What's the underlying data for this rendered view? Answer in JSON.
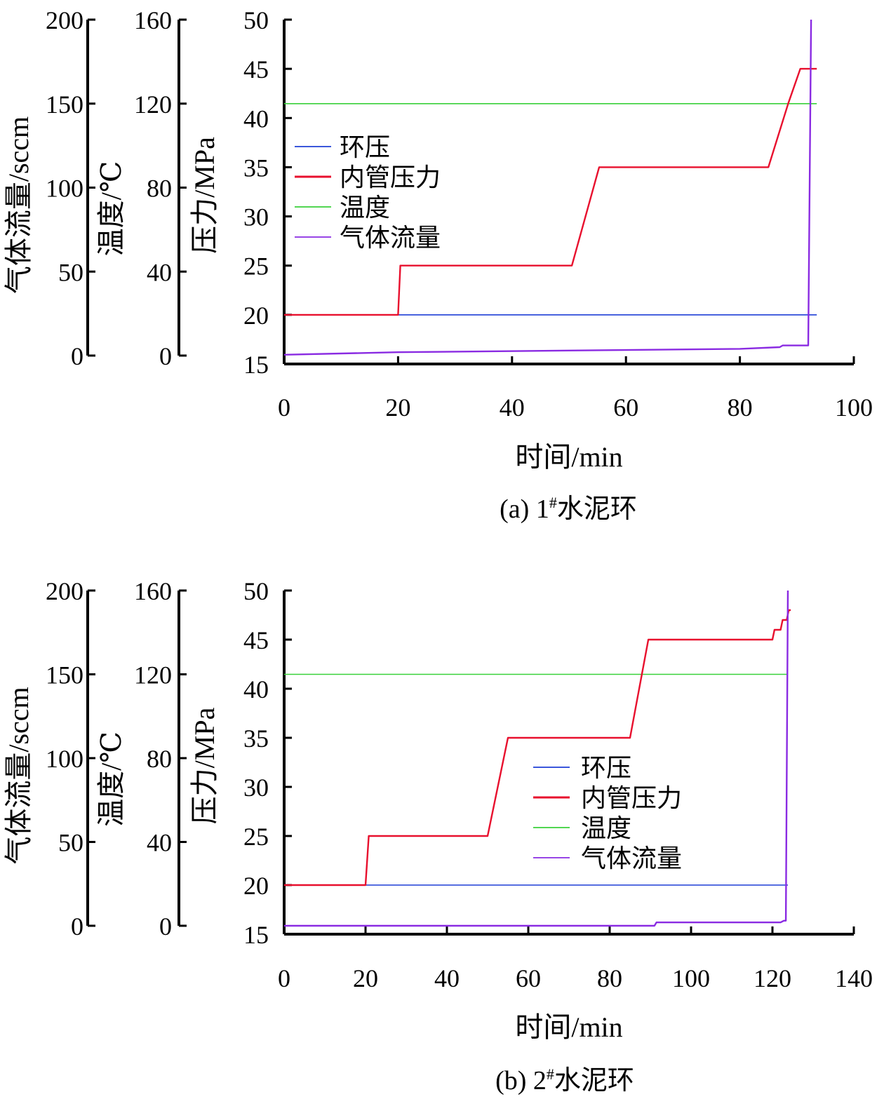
{
  "colors": {
    "annulus_pressure": "#1f3fd6",
    "inner_pressure": "#e8102e",
    "temperature": "#39d13a",
    "gas_flow": "#8a2be2",
    "axis": "#000000"
  },
  "chart_data": [
    {
      "type": "line",
      "caption": {
        "pre": "(a) 1",
        "sup": "#",
        "post": "水泥环"
      },
      "xlabel": "时间/min",
      "xlim": [
        0,
        100
      ],
      "xticks": [
        0,
        20,
        40,
        60,
        80,
        100
      ],
      "axes": {
        "pressure": {
          "label": "压力/MPa",
          "ylim": [
            15,
            50
          ],
          "ticks": [
            15,
            20,
            25,
            30,
            35,
            40,
            45,
            50
          ]
        },
        "temperature": {
          "label": "温度/℃",
          "ylim": [
            0,
            160
          ],
          "ticks": [
            0,
            40,
            80,
            120,
            160
          ]
        },
        "gas_flow": {
          "label": "气体流量/sccm",
          "ylim": [
            0,
            200
          ],
          "ticks": [
            0,
            50,
            100,
            150,
            200
          ]
        }
      },
      "legend_position": "left-top",
      "series": [
        {
          "name": "环压",
          "key": "annulus_pressure",
          "axis": "pressure",
          "x": [
            0,
            93.5
          ],
          "y": [
            20,
            20
          ]
        },
        {
          "name": "内管压力",
          "key": "inner_pressure",
          "axis": "pressure",
          "x": [
            0,
            20,
            20.4,
            50.5,
            55.3,
            85,
            88.5,
            90.6,
            93.5
          ],
          "y": [
            20,
            20,
            25,
            25,
            35,
            35,
            41.5,
            45,
            45
          ]
        },
        {
          "name": "温度",
          "key": "temperature",
          "axis": "temperature",
          "x": [
            0,
            93.5
          ],
          "y": [
            120,
            120
          ]
        },
        {
          "name": "气体流量",
          "key": "gas_flow",
          "axis": "gas_flow",
          "x": [
            0,
            20,
            50,
            80,
            87,
            87.5,
            92,
            92.5
          ],
          "y": [
            0.5,
            2,
            3,
            4,
            5,
            6,
            6,
            200
          ]
        }
      ]
    },
    {
      "type": "line",
      "caption": {
        "pre": "(b) 2",
        "sup": "#",
        "post": "水泥环"
      },
      "xlabel": "时间/min",
      "xlim": [
        0,
        140
      ],
      "xticks": [
        0,
        20,
        40,
        60,
        80,
        100,
        120,
        140
      ],
      "axes": {
        "pressure": {
          "label": "压力/MPa",
          "ylim": [
            15,
            50
          ],
          "ticks": [
            15,
            20,
            25,
            30,
            35,
            40,
            45,
            50
          ]
        },
        "temperature": {
          "label": "温度/℃",
          "ylim": [
            0,
            160
          ],
          "ticks": [
            0,
            40,
            80,
            120,
            160
          ]
        },
        "gas_flow": {
          "label": "气体流量/sccm",
          "ylim": [
            0,
            200
          ],
          "ticks": [
            0,
            50,
            100,
            150,
            200
          ]
        }
      },
      "legend_position": "center-right",
      "series": [
        {
          "name": "环压",
          "key": "annulus_pressure",
          "axis": "pressure",
          "x": [
            0,
            123.8
          ],
          "y": [
            20,
            20
          ]
        },
        {
          "name": "内管压力",
          "key": "inner_pressure",
          "axis": "pressure",
          "x": [
            0,
            20,
            20.8,
            50,
            55,
            85,
            89.5,
            120,
            120.5,
            122,
            122.5,
            123.5,
            124,
            124.5
          ],
          "y": [
            20,
            20,
            25,
            25,
            35,
            35,
            45,
            45,
            46,
            46,
            47,
            47,
            48,
            48
          ]
        },
        {
          "name": "温度",
          "key": "temperature",
          "axis": "temperature",
          "x": [
            0,
            123.8
          ],
          "y": [
            120,
            120
          ]
        },
        {
          "name": "气体流量",
          "key": "gas_flow",
          "axis": "gas_flow",
          "x": [
            0,
            91,
            91.5,
            122,
            122.8,
            123.3,
            123.8
          ],
          "y": [
            0,
            0,
            2,
            2,
            3,
            3,
            200
          ]
        }
      ]
    }
  ]
}
